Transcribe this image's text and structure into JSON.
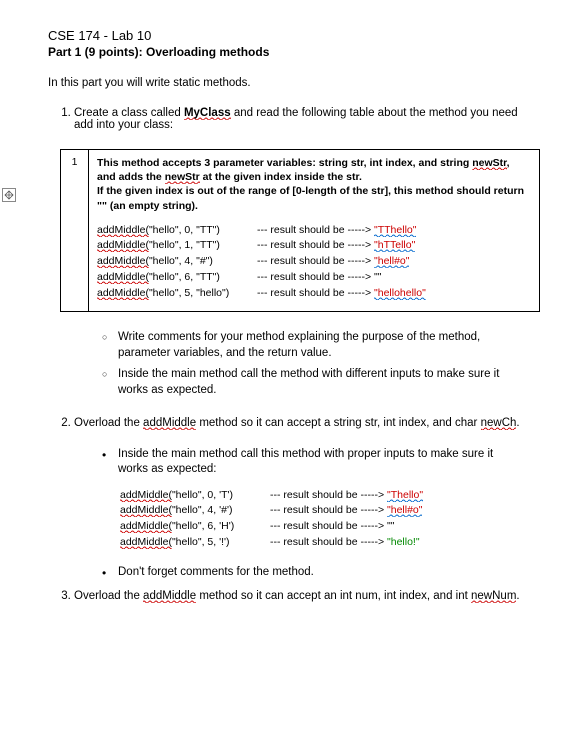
{
  "header": {
    "course_title": "CSE 174 - Lab 10",
    "part_title": "Part 1 (9 points): Overloading methods"
  },
  "intro": "In this part you will write static methods.",
  "item1": {
    "prefix": "Create a class called ",
    "classname": "MyClass",
    "suffix": " and read the following table about the method you need add into your class:"
  },
  "table": {
    "idx": "1",
    "desc1a": "This method accepts 3 parameter variables: string str, int index, and string ",
    "desc1b": "newStr",
    "desc1c": ", and adds the ",
    "desc1d": "newStr",
    "desc1e": " at the given index inside the str.",
    "desc2": "If the given index is out of the range of [0-length of the str], this method should return \"\" (an empty string).",
    "rows": [
      {
        "fn": "addMiddle(",
        "args": "\"hello\", 0, \"TT\")",
        "mid": "--- result should be -----> ",
        "res": "\"TThello\"",
        "color": "red"
      },
      {
        "fn": "addMiddle(",
        "args": "\"hello\", 1, \"TT\")",
        "mid": "--- result should be -----> ",
        "res": "\"hTTello\"",
        "color": "red"
      },
      {
        "fn": "addMiddle(",
        "args": "\"hello\", 4, \"#\")",
        "mid": "--- result should be -----> ",
        "res": "\"hell#o\"",
        "color": "red"
      },
      {
        "fn": "addMiddle(",
        "args": "\"hello\", 6, \"TT\")",
        "mid": "--- result should be -----> ",
        "res": "\"\"",
        "color": "none"
      },
      {
        "fn": "addMiddle(",
        "args": "\"hello\", 5, \"hello\")",
        "mid": "--- result should be -----> ",
        "res": "\"hellohello\"",
        "color": "red"
      }
    ]
  },
  "sublist": {
    "a": "Write comments for your method explaining the purpose of the method, parameter variables, and the return value.",
    "b": "Inside the main method call the method with different inputs to make sure it works as expected."
  },
  "item2": {
    "prefix": "Overload the ",
    "method": "addMiddle",
    "mid": " method so it can accept a string str, int index, and char ",
    "param": "newCh",
    "suffix": "."
  },
  "item2_bullet": "Inside the main method call this method with proper inputs to make sure it works as expected:",
  "table2_rows": [
    {
      "fn": "addMiddle(",
      "args": "\"hello\", 0, 'T')",
      "mid": "--- result should be -----> ",
      "res": "\"Thello\"",
      "color": "red"
    },
    {
      "fn": "addMiddle(",
      "args": "\"hello\", 4, '#')",
      "mid": "--- result should be -----> ",
      "res": "\"hell#o\"",
      "color": "red"
    },
    {
      "fn": "addMiddle(",
      "args": "\"hello\", 6, 'H')",
      "mid": "--- result should be -----> ",
      "res": "\"\"",
      "color": "none"
    },
    {
      "fn": "addMiddle(",
      "args": "\"hello\", 5, '!')",
      "mid": "--- result should be -----> ",
      "res": "\"hello!\"",
      "color": "green"
    }
  ],
  "item2_dont": "Don't forget comments for the method.",
  "item3": {
    "prefix": "Overload the ",
    "method": "addMiddle",
    "mid": " method so it can accept an int num, int index, and int ",
    "param": "newNum",
    "suffix": "."
  },
  "colors": {
    "red": "#cc0000",
    "green": "#008800"
  }
}
